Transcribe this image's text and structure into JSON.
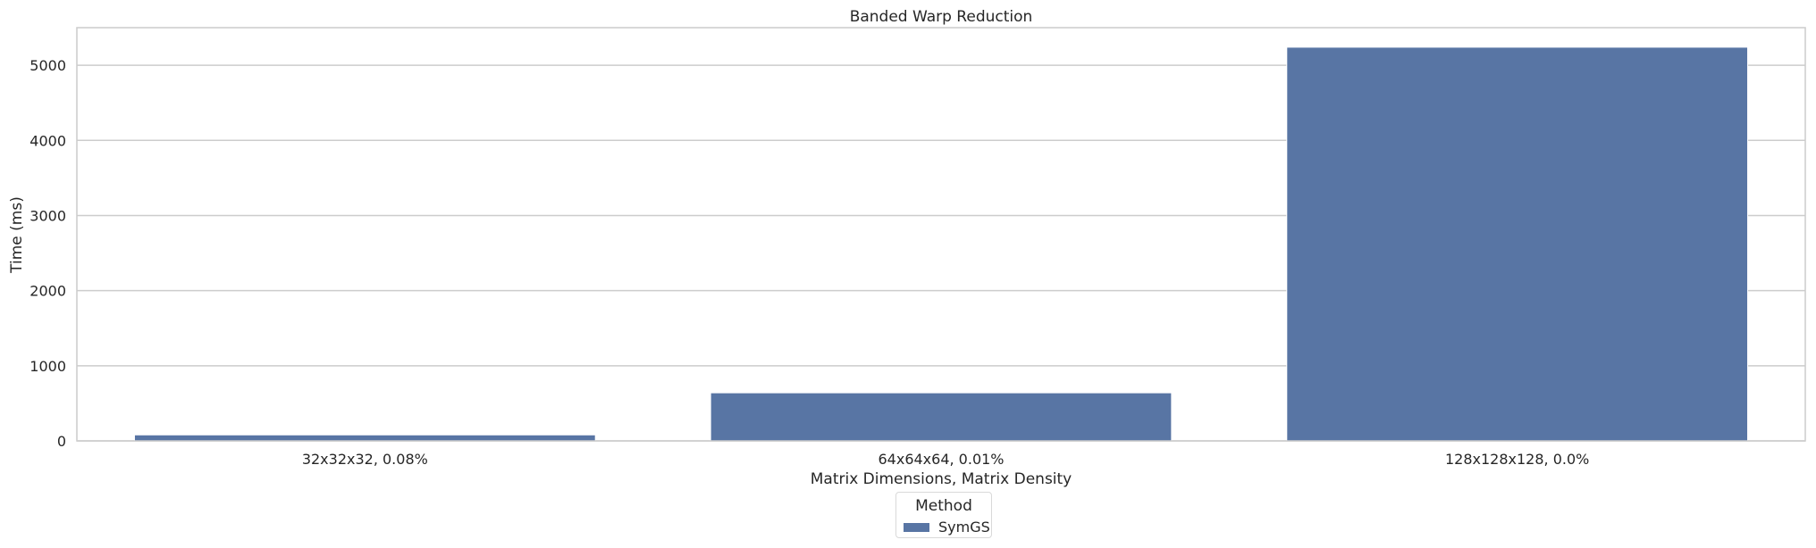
{
  "chart_data": {
    "type": "bar",
    "title": "Banded Warp Reduction",
    "xlabel": "Matrix Dimensions, Matrix Density",
    "ylabel": "Time (ms)",
    "categories": [
      "32x32x32, 0.08%",
      "64x64x64, 0.01%",
      "128x128x128, 0.0%"
    ],
    "series": [
      {
        "name": "SymGS",
        "values": [
          80,
          640,
          5240
        ],
        "color": "#5875a4"
      }
    ],
    "ylim": [
      0,
      5500
    ],
    "yticks": [
      0,
      1000,
      2000,
      3000,
      4000,
      5000
    ],
    "grid": true,
    "legend": {
      "title": "Method",
      "placement": "bottom-center"
    }
  }
}
